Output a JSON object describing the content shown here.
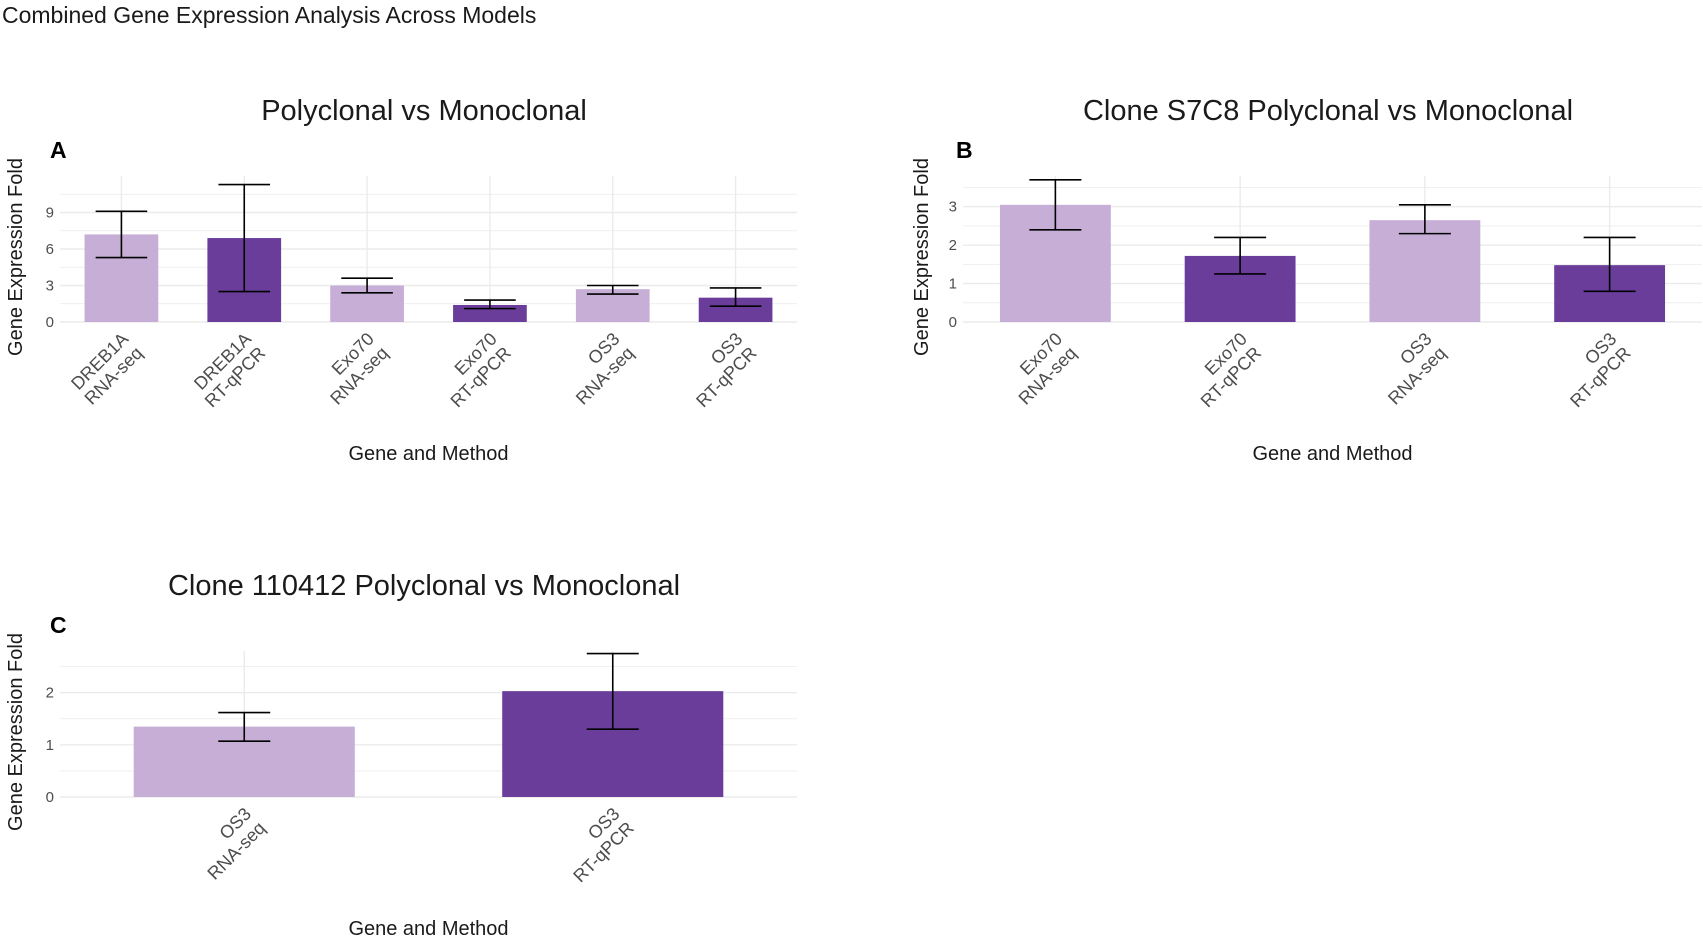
{
  "figure_title": "Combined Gene Expression Analysis Across Models",
  "colors": {
    "rna_seq": "#c7aed6",
    "rt_qpcr": "#6a3d9a",
    "grid": "#ebebeb",
    "text": "#1a1a1a",
    "tick": "#4d4d4d"
  },
  "chart_data": [
    {
      "panel": "A",
      "type": "bar",
      "title": "Polyclonal vs Monoclonal",
      "xlabel": "Gene and Method",
      "ylabel": "Gene Expression Fold",
      "ylim": [
        0,
        12
      ],
      "yticks": [
        0,
        3,
        6,
        9
      ],
      "categories": [
        {
          "gene": "DREB1A",
          "method": "RNA-seq",
          "value": 7.2,
          "err_low": 5.3,
          "err_high": 9.1
        },
        {
          "gene": "DREB1A",
          "method": "RT-qPCR",
          "value": 6.9,
          "err_low": 2.5,
          "err_high": 11.3
        },
        {
          "gene": "Exo70",
          "method": "RNA-seq",
          "value": 3.0,
          "err_low": 2.4,
          "err_high": 3.6
        },
        {
          "gene": "Exo70",
          "method": "RT-qPCR",
          "value": 1.4,
          "err_low": 1.1,
          "err_high": 1.8
        },
        {
          "gene": "OS3",
          "method": "RNA-seq",
          "value": 2.7,
          "err_low": 2.3,
          "err_high": 3.0
        },
        {
          "gene": "OS3",
          "method": "RT-qPCR",
          "value": 2.0,
          "err_low": 1.3,
          "err_high": 2.8
        }
      ]
    },
    {
      "panel": "B",
      "type": "bar",
      "title": "Clone S7C8 Polyclonal vs Monoclonal",
      "xlabel": "Gene and Method",
      "ylabel": "Gene Expression Fold",
      "ylim": [
        0,
        3.8
      ],
      "yticks": [
        0,
        1,
        2,
        3
      ],
      "categories": [
        {
          "gene": "Exo70",
          "method": "RNA-seq",
          "value": 3.05,
          "err_low": 2.4,
          "err_high": 3.7
        },
        {
          "gene": "Exo70",
          "method": "RT-qPCR",
          "value": 1.72,
          "err_low": 1.25,
          "err_high": 2.2
        },
        {
          "gene": "OS3",
          "method": "RNA-seq",
          "value": 2.65,
          "err_low": 2.3,
          "err_high": 3.05
        },
        {
          "gene": "OS3",
          "method": "RT-qPCR",
          "value": 1.48,
          "err_low": 0.8,
          "err_high": 2.2
        }
      ]
    },
    {
      "panel": "C",
      "type": "bar",
      "title": "Clone 110412 Polyclonal vs Monoclonal",
      "xlabel": "Gene and Method",
      "ylabel": "Gene Expression Fold",
      "ylim": [
        0,
        2.8
      ],
      "yticks": [
        0,
        1,
        2
      ],
      "categories": [
        {
          "gene": "OS3",
          "method": "RNA-seq",
          "value": 1.35,
          "err_low": 1.07,
          "err_high": 1.62
        },
        {
          "gene": "OS3",
          "method": "RT-qPCR",
          "value": 2.03,
          "err_low": 1.3,
          "err_high": 2.75
        }
      ]
    }
  ]
}
